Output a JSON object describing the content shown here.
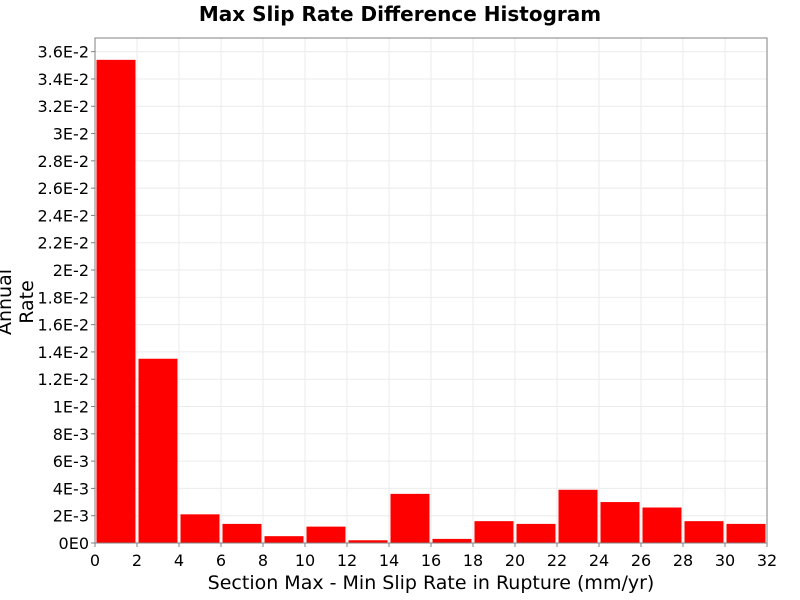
{
  "chart_data": {
    "type": "bar",
    "title": "Max Slip Rate Difference Histogram",
    "xlabel": "Section Max - Min Slip Rate in Rupture (mm/yr)",
    "ylabel": "Annual Rate",
    "xlim": [
      0,
      32
    ],
    "ylim": [
      0,
      0.037
    ],
    "grid": true,
    "bin_width": 2,
    "x_bin_starts": [
      0,
      2,
      4,
      6,
      8,
      10,
      12,
      14,
      16,
      18,
      20,
      22,
      24,
      26,
      28,
      30
    ],
    "values": [
      0.0354,
      0.0135,
      0.0021,
      0.0014,
      0.0005,
      0.0012,
      0.0002,
      0.0036,
      0.0003,
      0.0016,
      0.0014,
      0.0039,
      0.003,
      0.0026,
      0.0016,
      0.0014
    ],
    "x_ticks": [
      "0",
      "2",
      "4",
      "6",
      "8",
      "10",
      "12",
      "14",
      "16",
      "18",
      "20",
      "22",
      "24",
      "26",
      "28",
      "30",
      "32"
    ],
    "y_ticks": [
      {
        "value": 0,
        "label": "0E0"
      },
      {
        "value": 0.002,
        "label": "2E-3"
      },
      {
        "value": 0.004,
        "label": "4E-3"
      },
      {
        "value": 0.006,
        "label": "6E-3"
      },
      {
        "value": 0.008,
        "label": "8E-3"
      },
      {
        "value": 0.01,
        "label": "1E-2"
      },
      {
        "value": 0.012,
        "label": "1.2E-2"
      },
      {
        "value": 0.014,
        "label": "1.4E-2"
      },
      {
        "value": 0.016,
        "label": "1.6E-2"
      },
      {
        "value": 0.018,
        "label": "1.8E-2"
      },
      {
        "value": 0.02,
        "label": "2E-2"
      },
      {
        "value": 0.022,
        "label": "2.2E-2"
      },
      {
        "value": 0.024,
        "label": "2.4E-2"
      },
      {
        "value": 0.026,
        "label": "2.6E-2"
      },
      {
        "value": 0.028,
        "label": "2.8E-2"
      },
      {
        "value": 0.03,
        "label": "3E-2"
      },
      {
        "value": 0.032,
        "label": "3.2E-2"
      },
      {
        "value": 0.034,
        "label": "3.4E-2"
      },
      {
        "value": 0.036,
        "label": "3.6E-2"
      }
    ],
    "colors": {
      "bar": "#ff0000",
      "grid": "#ebebeb",
      "axis": "#808080",
      "background": "#ffffff"
    }
  }
}
